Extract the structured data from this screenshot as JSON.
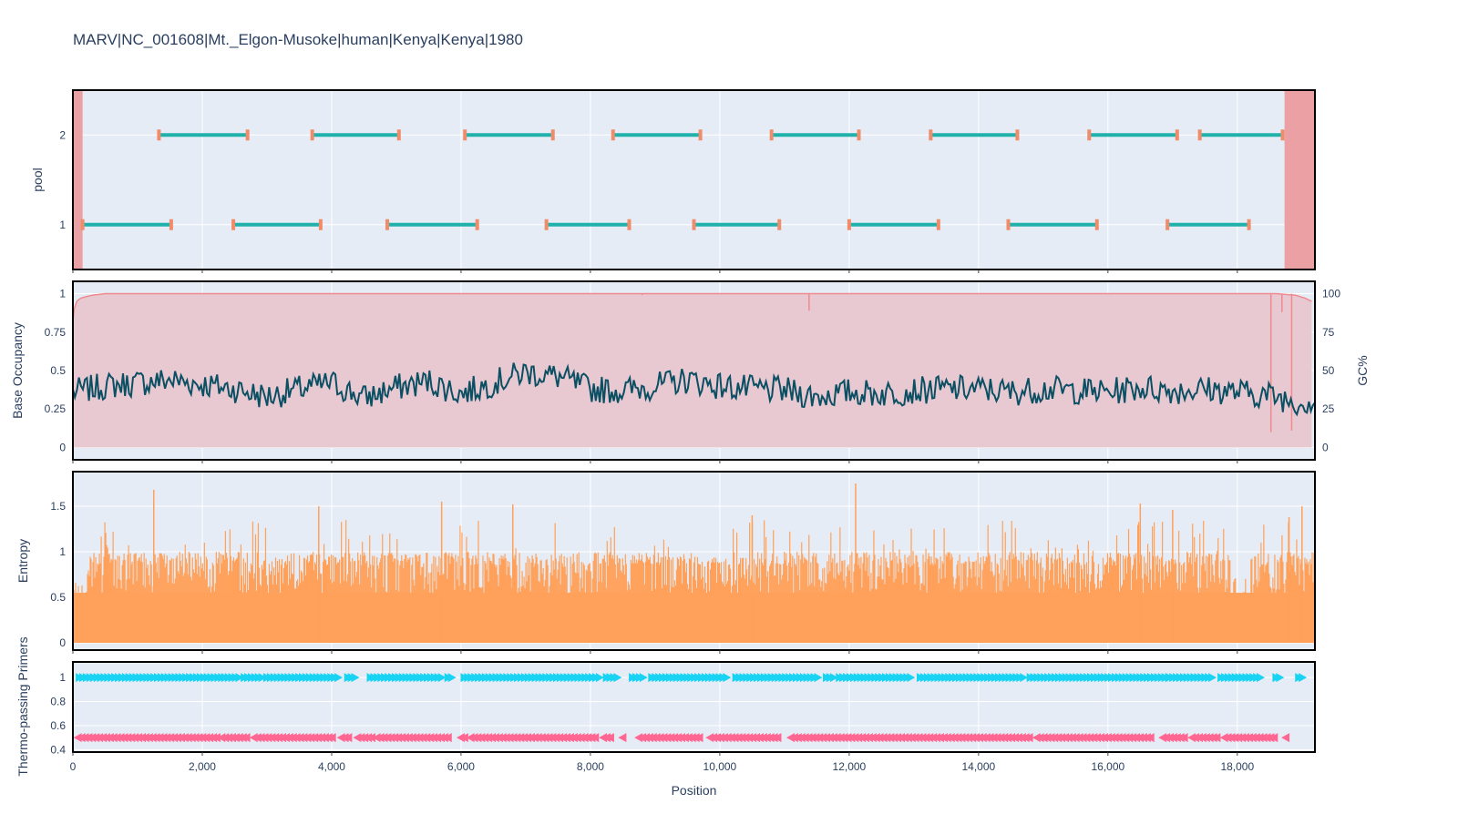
{
  "title": "MARV|NC_001608|Mt._Elgon-Musoke|human|Kenya|Kenya|1980",
  "colors": {
    "plot_bg": "#e5ecf6",
    "grid": "#ffffff",
    "text": "#2a3f5f",
    "amplicon": "#20b2aa",
    "primer_tick": "#f08c6a",
    "masked_region": "#eba0a4",
    "occupancy_fill": "#e8c6cf",
    "occupancy_line": "#ef8a8e",
    "gc_line": "#0b4f63",
    "entropy": "#ffa15a",
    "fwd_primer": "#19d3f3",
    "rev_primer": "#ff6692"
  },
  "chart_data": [
    {
      "type": "scatter",
      "panel": "amplicons",
      "ylabel": "pool",
      "y_ticks": [
        "1",
        "2"
      ],
      "ylim": [
        0.5,
        2.5
      ],
      "xlim": [
        0,
        19200
      ],
      "grid": true,
      "masked_regions": [
        [
          0,
          150
        ],
        [
          18730,
          19200
        ]
      ],
      "amplicons_pool1": [
        [
          150,
          1520
        ],
        [
          2480,
          3830
        ],
        [
          4860,
          6250
        ],
        [
          7320,
          8600
        ],
        [
          9600,
          10920
        ],
        [
          12000,
          13380
        ],
        [
          14460,
          15830
        ],
        [
          16920,
          18180
        ]
      ],
      "amplicons_pool2": [
        [
          1330,
          2700
        ],
        [
          3700,
          5040
        ],
        [
          6060,
          7420
        ],
        [
          8350,
          9700
        ],
        [
          10800,
          12150
        ],
        [
          13260,
          14600
        ],
        [
          15710,
          17070
        ],
        [
          17420,
          18700
        ]
      ]
    },
    {
      "type": "area",
      "panel": "occupancy_gc",
      "ylabel": "Base Occupancy",
      "y2label": "GC%",
      "y_ticks": [
        "0",
        "0.25",
        "0.5",
        "0.75",
        "1"
      ],
      "y2_ticks": [
        "0",
        "25",
        "50",
        "75",
        "100"
      ],
      "ylim": [
        -0.08,
        1.08
      ],
      "xlim": [
        0,
        19200
      ],
      "occupancy_x": [
        0,
        20,
        60,
        120,
        200,
        300,
        500,
        18600,
        18750,
        18900,
        19050,
        19150
      ],
      "occupancy_y": [
        0.82,
        0.9,
        0.95,
        0.97,
        0.98,
        0.99,
        1,
        1,
        0.995,
        0.99,
        0.97,
        0.95
      ],
      "occupancy_dips": [
        [
          11380,
          0.89
        ],
        [
          18520,
          0.1
        ],
        [
          18690,
          0.88
        ],
        [
          18840,
          0.11
        ],
        [
          8800,
          0.99
        ]
      ],
      "gc_x": [
        0,
        500,
        1000,
        1500,
        2000,
        2500,
        3000,
        3500,
        4000,
        4500,
        5000,
        5500,
        6000,
        6500,
        7000,
        7500,
        8000,
        8500,
        9000,
        9500,
        10000,
        10500,
        11000,
        11500,
        12000,
        12500,
        13000,
        13500,
        14000,
        14500,
        15000,
        15500,
        16000,
        16500,
        17000,
        17500,
        18000,
        18500,
        19000,
        19200
      ],
      "gc_y": [
        36,
        40,
        42,
        44,
        41,
        38,
        33,
        38,
        42,
        32,
        39,
        43,
        35,
        42,
        49,
        46,
        38,
        37,
        40,
        44,
        40,
        38,
        37,
        33,
        36,
        35,
        37,
        38,
        38,
        36,
        38,
        37,
        36,
        39,
        37,
        38,
        36,
        34,
        29,
        31
      ],
      "gc_noise": 9
    },
    {
      "type": "bar",
      "panel": "entropy",
      "ylabel": "Entropy",
      "y_ticks": [
        "0",
        "0.5",
        "1",
        "1.5"
      ],
      "ylim": [
        -0.08,
        1.88
      ],
      "xlim": [
        0,
        19200
      ],
      "baseline": 1.0,
      "peaks": [
        [
          1250,
          1.68
        ],
        [
          12100,
          1.75
        ],
        [
          3800,
          1.5
        ],
        [
          5700,
          1.55
        ],
        [
          6800,
          1.52
        ],
        [
          16500,
          1.53
        ],
        [
          19000,
          1.5
        ],
        [
          17000,
          1.46
        ],
        [
          10500,
          1.4
        ],
        [
          18800,
          1.38
        ]
      ],
      "low_regions": [
        [
          0,
          200
        ],
        [
          17900,
          18200
        ]
      ]
    },
    {
      "type": "scatter",
      "panel": "thermo_primers",
      "ylabel": "Thermo-passing Primers",
      "xlabel": "Position",
      "y_ticks": [
        "0.4",
        "0.6",
        "0.8",
        "1"
      ],
      "x_ticks": [
        "0",
        "2,000",
        "4,000",
        "6,000",
        "8,000",
        "10,000",
        "12,000",
        "14,000",
        "16,000",
        "18,000"
      ],
      "x_tick_values": [
        0,
        2000,
        4000,
        6000,
        8000,
        10000,
        12000,
        14000,
        16000,
        18000
      ],
      "ylim": [
        0.38,
        1.13
      ],
      "xlim": [
        0,
        19200
      ],
      "forward_y": 1.0,
      "reverse_y": 0.5,
      "forward_clusters": [
        [
          100,
          2300
        ],
        [
          2350,
          2600
        ],
        [
          2650,
          2950
        ],
        [
          3000,
          4100
        ],
        [
          4250,
          4400
        ],
        [
          4600,
          5700
        ],
        [
          5800,
          5900
        ],
        [
          6050,
          8150
        ],
        [
          8250,
          8450
        ],
        [
          8650,
          8850
        ],
        [
          8950,
          10000
        ],
        [
          10050,
          10150
        ],
        [
          10250,
          11550
        ],
        [
          11650,
          11800
        ],
        [
          11850,
          13000
        ],
        [
          13100,
          14700
        ],
        [
          14800,
          15900
        ],
        [
          15950,
          16950
        ],
        [
          16950,
          17650
        ],
        [
          17750,
          18400
        ],
        [
          18600,
          18700
        ],
        [
          18950,
          19050
        ]
      ],
      "reverse_clusters": [
        [
          80,
          2250
        ],
        [
          2300,
          2700
        ],
        [
          2800,
          4050
        ],
        [
          4150,
          4300
        ],
        [
          4400,
          4650
        ],
        [
          4700,
          5800
        ],
        [
          6000,
          6100
        ],
        [
          6150,
          8100
        ],
        [
          8200,
          8350
        ],
        [
          8500,
          8550
        ],
        [
          8750,
          9700
        ],
        [
          9850,
          10900
        ],
        [
          11100,
          14800
        ],
        [
          14900,
          16700
        ],
        [
          16850,
          17200
        ],
        [
          17300,
          17700
        ],
        [
          17800,
          18600
        ],
        [
          18750,
          18800
        ]
      ]
    }
  ]
}
